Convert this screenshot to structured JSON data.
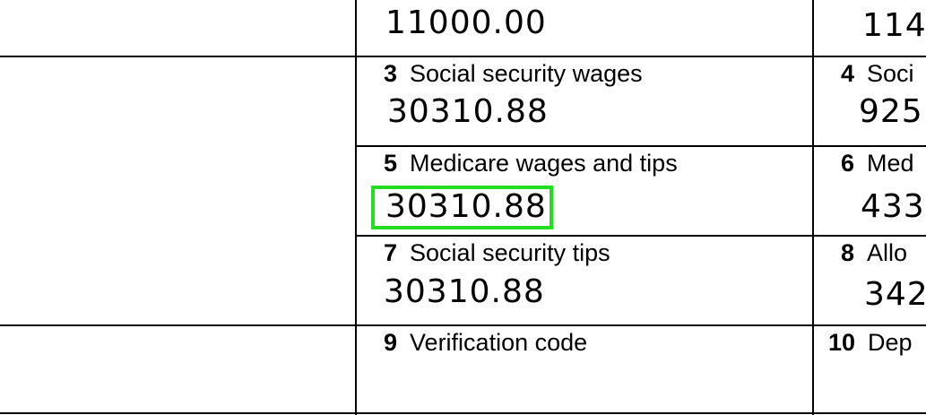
{
  "boxes": {
    "top_left_value": "11000.00",
    "top_right_value": "114",
    "b3": {
      "num": "3",
      "label": "Social security wages",
      "value": "30310.88"
    },
    "b4": {
      "num": "4",
      "label": "Soci",
      "value": "925"
    },
    "b5": {
      "num": "5",
      "label": "Medicare wages and tips",
      "value": "30310.88"
    },
    "b6": {
      "num": "6",
      "label": "Med",
      "value": "433"
    },
    "b7": {
      "num": "7",
      "label": "Social security tips",
      "value": "30310.88"
    },
    "b8": {
      "num": "8",
      "label": "Allo",
      "value": "342"
    },
    "b9": {
      "num": "9",
      "label": "Verification code"
    },
    "b10": {
      "num": "10",
      "label": "Dep"
    }
  },
  "highlight_color": "#22dd22"
}
